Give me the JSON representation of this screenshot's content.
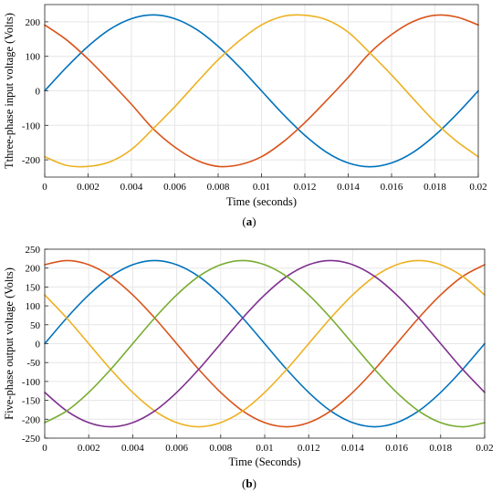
{
  "figure": {
    "panels": [
      {
        "caption_open": "(",
        "caption_letter": "a",
        "caption_close": ")"
      },
      {
        "caption_open": "(",
        "caption_letter": "b",
        "caption_close": ")"
      }
    ]
  },
  "chart_data": [
    {
      "type": "line",
      "title": "",
      "xlabel": "Time (seconds)",
      "ylabel": "Tthree-phase input voltage (Volts)",
      "xlim": [
        0,
        0.02
      ],
      "ylim": [
        -250,
        250
      ],
      "xticks": [
        "0",
        "0.002",
        "0.004",
        "0.006",
        "0.008",
        "0.01",
        "0.012",
        "0.014",
        "0.016",
        "0.018",
        "0.02"
      ],
      "yticks": [
        "200",
        "100",
        "0",
        "-100",
        "-200"
      ],
      "ytick_values": [
        200,
        100,
        0,
        -100,
        -200
      ],
      "grid": true,
      "x": [
        0,
        0.001,
        0.002,
        0.003,
        0.004,
        0.005,
        0.006,
        0.007,
        0.008,
        0.009,
        0.01,
        0.011,
        0.012,
        0.013,
        0.014,
        0.015,
        0.016,
        0.017,
        0.018,
        0.019,
        0.02
      ],
      "series": [
        {
          "color": "#0072BD",
          "values": [
            0,
            68,
            129,
            178,
            209,
            220,
            209,
            178,
            129,
            68,
            0,
            -68,
            -129,
            -178,
            -209,
            -220,
            -209,
            -178,
            -129,
            -68,
            0
          ]
        },
        {
          "color": "#D95319",
          "values": [
            191,
            148,
            92,
            28,
            -39,
            -110,
            -163,
            -201,
            -219,
            -214,
            -191,
            -148,
            -92,
            -28,
            39,
            110,
            163,
            201,
            219,
            214,
            191
          ]
        },
        {
          "color": "#EDB120",
          "values": [
            -191,
            -216,
            -219,
            -206,
            -170,
            -110,
            -46,
            23,
            90,
            146,
            191,
            216,
            219,
            206,
            170,
            110,
            46,
            -23,
            -90,
            -146,
            -191
          ]
        }
      ]
    },
    {
      "type": "line",
      "title": "",
      "xlabel": "Time (Seconds)",
      "ylabel": "Five-phase output voltage (Volts)",
      "xlim": [
        0,
        0.02
      ],
      "ylim": [
        -250,
        250
      ],
      "xticks": [
        "0",
        "0.002",
        "0.004",
        "0.006",
        "0.008",
        "0.01",
        "0.012",
        "0.014",
        "0.016",
        "0.018",
        "0.02"
      ],
      "yticks": [
        "250",
        "200",
        "150",
        "100",
        "50",
        "0",
        "-50",
        "-100",
        "-150",
        "-200",
        "-250"
      ],
      "ytick_values": [
        250,
        200,
        150,
        100,
        50,
        0,
        -50,
        -100,
        -150,
        -200,
        -250
      ],
      "grid": true,
      "x": [
        0,
        0.001,
        0.002,
        0.003,
        0.004,
        0.005,
        0.006,
        0.007,
        0.008,
        0.009,
        0.01,
        0.011,
        0.012,
        0.013,
        0.014,
        0.015,
        0.016,
        0.017,
        0.018,
        0.019,
        0.02
      ],
      "series": [
        {
          "color": "#0072BD",
          "values": [
            0,
            68,
            129,
            178,
            209,
            220,
            209,
            178,
            129,
            68,
            0,
            -68,
            -129,
            -178,
            -209,
            -220,
            -209,
            -178,
            -129,
            -68,
            0
          ]
        },
        {
          "color": "#D95319",
          "values": [
            209,
            220,
            209,
            178,
            129,
            68,
            0,
            -68,
            -129,
            -178,
            -209,
            -220,
            -209,
            -178,
            -129,
            -68,
            0,
            68,
            129,
            178,
            209
          ]
        },
        {
          "color": "#EDB120",
          "values": [
            129,
            68,
            0,
            -68,
            -129,
            -178,
            -209,
            -220,
            -209,
            -178,
            -129,
            -68,
            0,
            68,
            129,
            178,
            209,
            220,
            209,
            178,
            129
          ]
        },
        {
          "color": "#7E2F8E",
          "values": [
            -129,
            -178,
            -209,
            -220,
            -209,
            -178,
            -129,
            -68,
            0,
            68,
            129,
            178,
            209,
            220,
            209,
            178,
            129,
            68,
            0,
            -68,
            -129
          ]
        },
        {
          "color": "#77AC30",
          "values": [
            -209,
            -178,
            -129,
            -68,
            0,
            68,
            129,
            178,
            209,
            220,
            209,
            178,
            129,
            68,
            0,
            -68,
            -129,
            -178,
            -209,
            -220,
            -209
          ]
        }
      ]
    }
  ]
}
